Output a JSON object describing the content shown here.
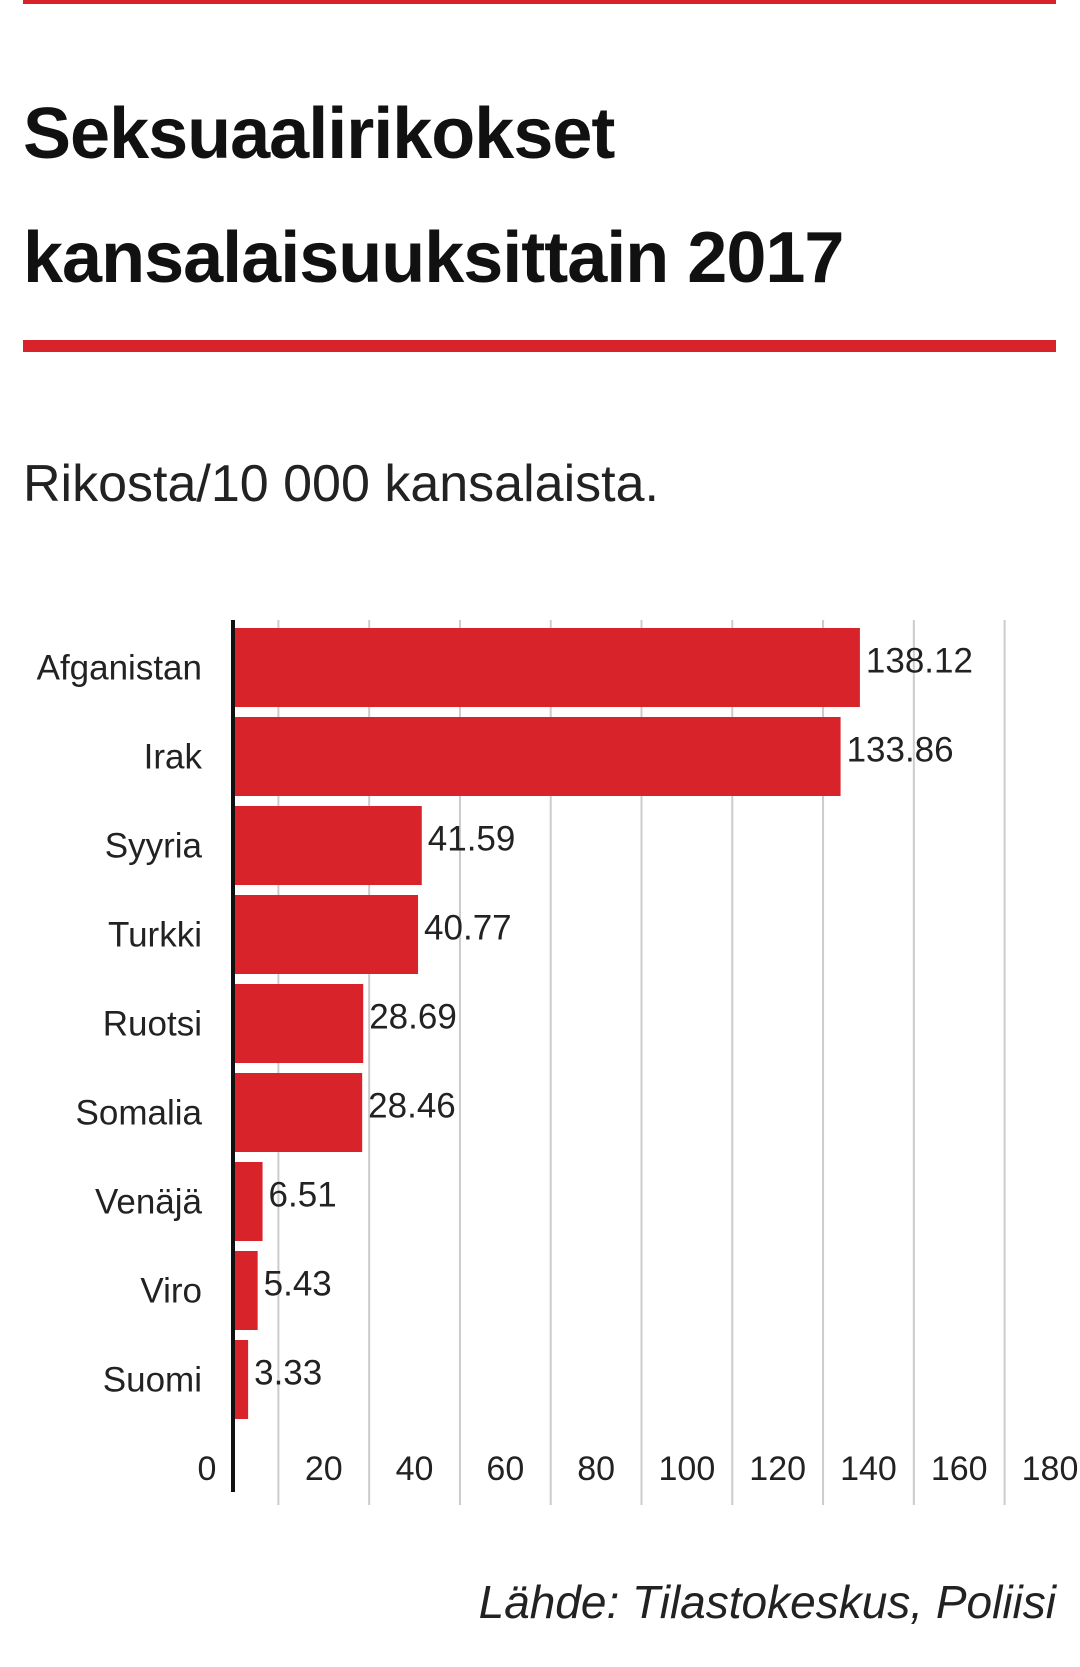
{
  "header": {
    "title_line1": "Seksuaalirikokset",
    "title_line2": "kansalaisuuksittain 2017",
    "subtitle": "Rikosta/10 000 kansalaista."
  },
  "footer": {
    "source": "Lähde: Tilastokeskus, Poliisi"
  },
  "colors": {
    "accent": "#d8232a",
    "grid": "#cccccc",
    "axis": "#111111"
  },
  "chart_data": {
    "type": "bar",
    "orientation": "horizontal",
    "categories": [
      "Afganistan",
      "Irak",
      "Syyria",
      "Turkki",
      "Ruotsi",
      "Somalia",
      "Venäjä",
      "Viro",
      "Suomi"
    ],
    "values": [
      138.12,
      133.86,
      41.59,
      40.77,
      28.69,
      28.46,
      6.51,
      5.43,
      3.33
    ],
    "data_labels": [
      "138.12",
      "133.86",
      "41.59",
      "40.77",
      "28.69",
      "28.46",
      "6.51",
      "5.43",
      "3.33"
    ],
    "xticks": [
      "0",
      "20",
      "40",
      "60",
      "80",
      "100",
      "120",
      "140",
      "160",
      "180"
    ],
    "xlim": [
      0,
      180
    ],
    "grid": true,
    "legend": "none",
    "title": "Seksuaalirikokset kansalaisuuksittain 2017",
    "subtitle": "Rikosta/10 000 kansalaista.",
    "xlabel": "",
    "ylabel": ""
  }
}
